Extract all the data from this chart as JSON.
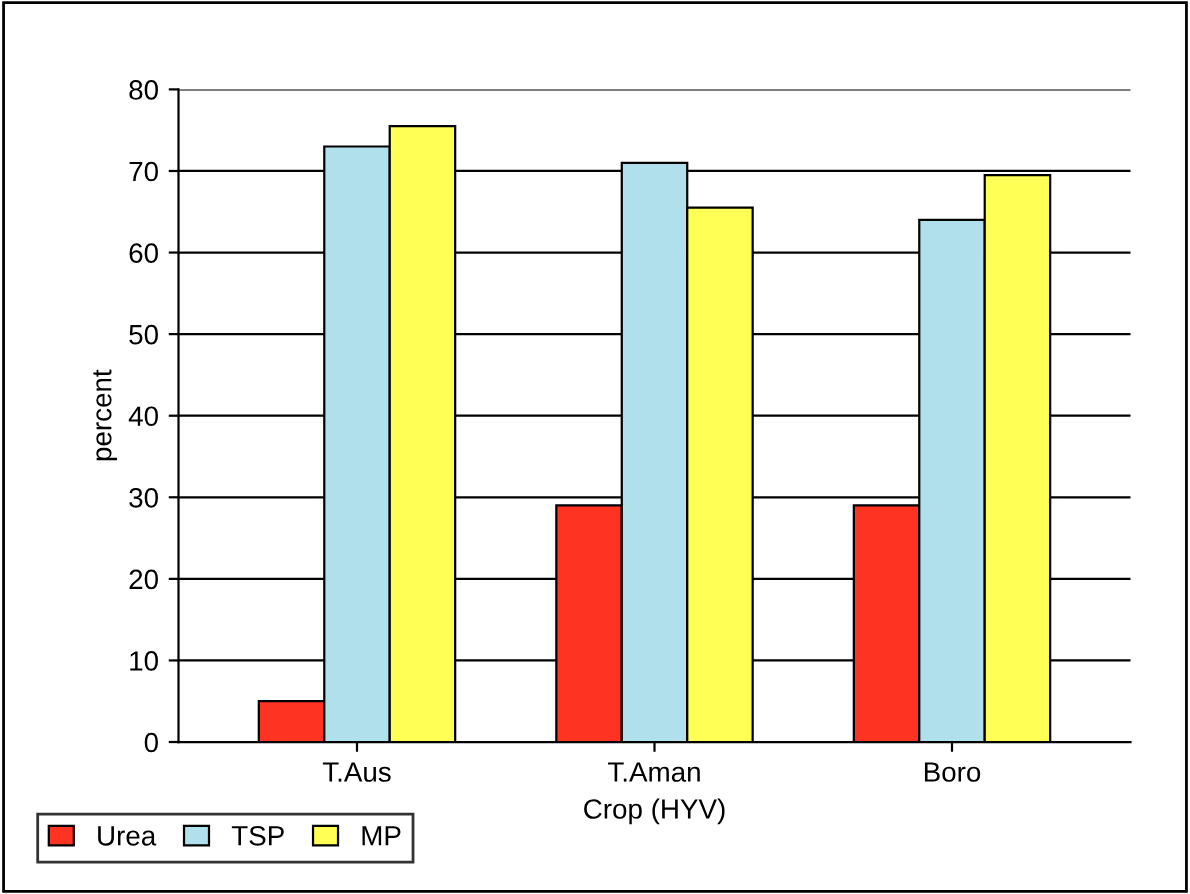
{
  "chart_data": {
    "type": "bar",
    "xlabel": "Crop (HYV)",
    "ylabel": "percent",
    "categories": [
      "T.Aus",
      "T.Aman",
      "Boro"
    ],
    "series": [
      {
        "name": "Urea",
        "color": "#ff3322",
        "values": [
          5,
          29,
          29
        ]
      },
      {
        "name": "TSP",
        "color": "#b0e0ec",
        "values": [
          73,
          71,
          64
        ]
      },
      {
        "name": "MP",
        "color": "#ffff55",
        "values": [
          75.5,
          65.5,
          69.5
        ]
      }
    ],
    "ylim": [
      0,
      80
    ],
    "yticks": [
      0,
      10,
      20,
      30,
      40,
      50,
      60,
      70,
      80
    ],
    "grid": "y",
    "legend": "bottom left"
  }
}
